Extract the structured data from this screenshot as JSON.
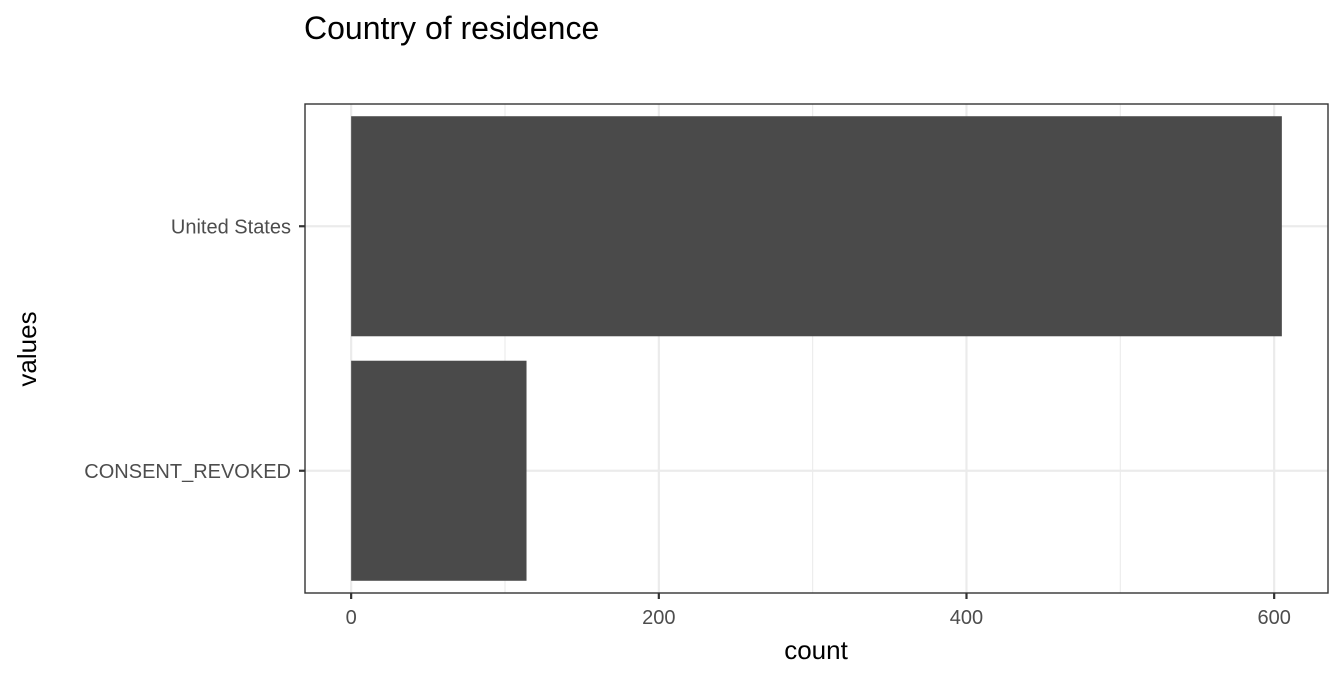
{
  "chart_data": {
    "type": "bar",
    "orientation": "horizontal",
    "title": "Country of residence",
    "xlabel": "count",
    "ylabel": "values",
    "categories": [
      "United States",
      "CONSENT_REVOKED"
    ],
    "values": [
      605,
      114
    ],
    "xlim": [
      -30,
      635
    ],
    "x_ticks": [
      0,
      200,
      400,
      600
    ],
    "x_tick_labels": [
      "0",
      "200",
      "400",
      "600"
    ],
    "grid": true,
    "legend": "none",
    "colors": {
      "bar": "#4a4a4a",
      "grid": "#ebebeb",
      "border": "#333333"
    }
  }
}
